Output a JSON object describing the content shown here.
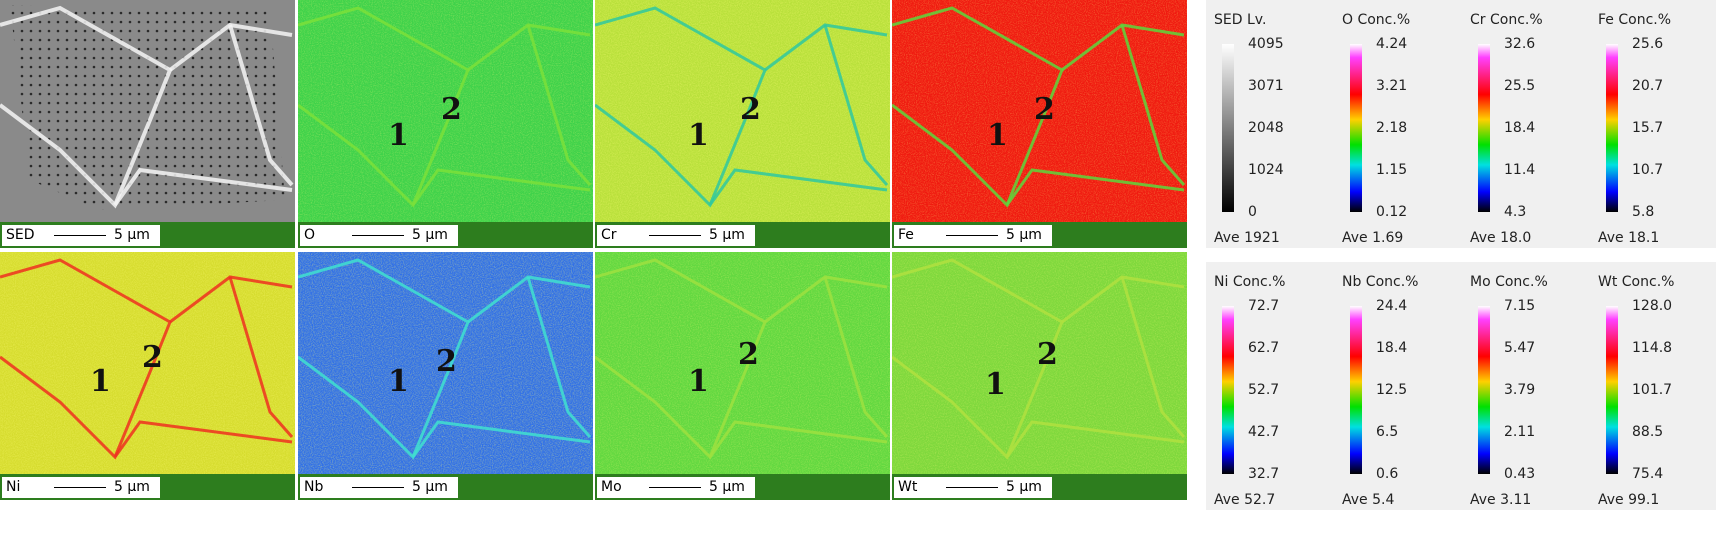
{
  "panels": [
    {
      "label": "SED",
      "scale": "5 µm",
      "points": []
    },
    {
      "label": "O",
      "scale": "5 µm",
      "points": [
        "1",
        "2"
      ]
    },
    {
      "label": "Cr",
      "scale": "5 µm",
      "points": [
        "1",
        "2"
      ]
    },
    {
      "label": "Fe",
      "scale": "5 µm",
      "points": [
        "1",
        "2"
      ]
    },
    {
      "label": "Ni",
      "scale": "5 µm",
      "points": [
        "1",
        "2"
      ]
    },
    {
      "label": "Nb",
      "scale": "5 µm",
      "points": [
        "1",
        "2"
      ]
    },
    {
      "label": "Mo",
      "scale": "5 µm",
      "points": [
        "1",
        "2"
      ]
    },
    {
      "label": "Wt",
      "scale": "5 µm",
      "points": [
        "1",
        "2"
      ]
    }
  ],
  "legends": [
    {
      "bars": [
        {
          "title": "SED Lv.",
          "ticks": [
            "4095",
            "3071",
            "2048",
            "1024",
            "0"
          ],
          "average": "Ave 1921"
        },
        {
          "title": "O Conc.%",
          "ticks": [
            "4.24",
            "3.21",
            "2.18",
            "1.15",
            "0.12"
          ],
          "average": "Ave 1.69"
        },
        {
          "title": "Cr Conc.%",
          "ticks": [
            "32.6",
            "25.5",
            "18.4",
            "11.4",
            "4.3"
          ],
          "average": "Ave 18.0"
        },
        {
          "title": "Fe Conc.%",
          "ticks": [
            "25.6",
            "20.7",
            "15.7",
            "10.7",
            "5.8"
          ],
          "average": "Ave 18.1"
        }
      ]
    },
    {
      "bars": [
        {
          "title": "Ni Conc.%",
          "ticks": [
            "72.7",
            "62.7",
            "52.7",
            "42.7",
            "32.7"
          ],
          "average": "Ave 52.7"
        },
        {
          "title": "Nb Conc.%",
          "ticks": [
            "24.4",
            "18.4",
            "12.5",
            "6.5",
            "0.6"
          ],
          "average": "Ave 5.4"
        },
        {
          "title": "Mo Conc.%",
          "ticks": [
            "7.15",
            "5.47",
            "3.79",
            "2.11",
            "0.43"
          ],
          "average": "Ave 3.11"
        },
        {
          "title": "Wt Conc.%",
          "ticks": [
            "128.0",
            "114.8",
            "101.7",
            "88.5",
            "75.4"
          ],
          "average": "Ave 99.1"
        }
      ]
    }
  ]
}
